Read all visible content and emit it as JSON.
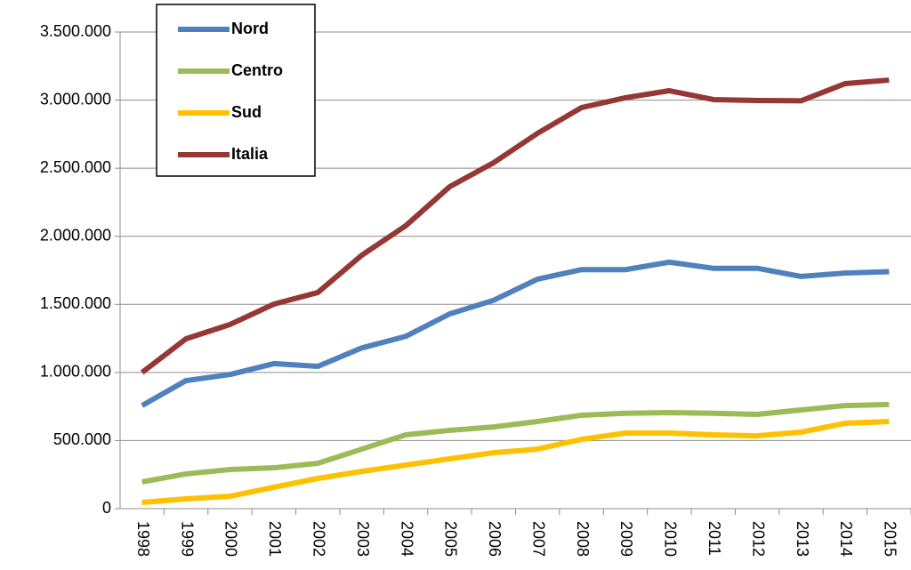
{
  "chart_data": {
    "type": "line",
    "categories": [
      "1998",
      "1999",
      "2000",
      "2001",
      "2002",
      "2003",
      "2004",
      "2005",
      "2006",
      "2007",
      "2008",
      "2009",
      "2010",
      "2011",
      "2012",
      "2013",
      "2014",
      "2015"
    ],
    "series": [
      {
        "name": "Nord",
        "color": "#4f81bd",
        "values": [
          757000,
          940000,
          985000,
          1065000,
          1045000,
          1180000,
          1265000,
          1430000,
          1530000,
          1685000,
          1755000,
          1755000,
          1810000,
          1765000,
          1765000,
          1705000,
          1730000,
          1740000
        ]
      },
      {
        "name": "Centro",
        "color": "#9bbb59",
        "values": [
          196000,
          255000,
          287000,
          300000,
          333000,
          437000,
          542000,
          575000,
          600000,
          640000,
          686000,
          700000,
          705000,
          700000,
          692000,
          725000,
          757000,
          765000
        ]
      },
      {
        "name": "Sud",
        "color": "#ffc000",
        "values": [
          46000,
          72000,
          91000,
          157000,
          222000,
          274000,
          320000,
          366000,
          411000,
          437000,
          509000,
          555000,
          555000,
          542000,
          535000,
          562000,
          627000,
          640000
        ]
      },
      {
        "name": "Italia",
        "color": "#953735",
        "values": [
          1000000,
          1247000,
          1352000,
          1502000,
          1587000,
          1861000,
          2077000,
          2364000,
          2540000,
          2756000,
          2945000,
          3017000,
          3069000,
          3004000,
          2997000,
          2995000,
          3121000,
          3147000
        ]
      }
    ],
    "ylim": [
      0,
      3500000
    ],
    "yticks": [
      0,
      {
        "value": 500000,
        "label": "500.000"
      },
      {
        "value": 1000000,
        "label": "1.000.000"
      },
      {
        "value": 1500000,
        "label": "1.500.000"
      },
      {
        "value": 2000000,
        "label": "2.000.000"
      },
      {
        "value": 2500000,
        "label": "2.500.000"
      },
      {
        "value": 3000000,
        "label": "3.000.000"
      },
      {
        "value": 3500000,
        "label": "3.500.000"
      }
    ],
    "grid": true,
    "legend": "top-left"
  }
}
